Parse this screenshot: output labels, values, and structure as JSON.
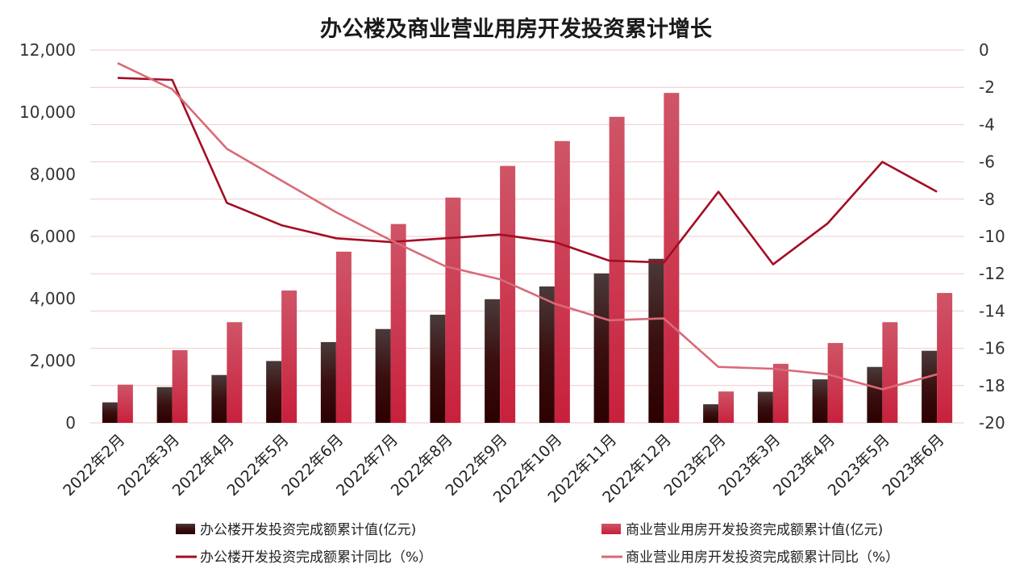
{
  "chart_data": {
    "type": "bar",
    "title": "办公楼及商业营业用房开发投资累计增长",
    "categories": [
      "2022年2月",
      "2022年3月",
      "2022年4月",
      "2022年5月",
      "2022年6月",
      "2022年7月",
      "2022年8月",
      "2022年9月",
      "2022年10月",
      "2022年11月",
      "2022年12月",
      "2023年2月",
      "2023年3月",
      "2023年4月",
      "2023年5月",
      "2023年6月"
    ],
    "ylim_left": [
      0,
      12000
    ],
    "yticks_left": [
      "0",
      "2,000",
      "4,000",
      "6,000",
      "8,000",
      "10,000",
      "12,000"
    ],
    "ylim_right": [
      -20,
      0
    ],
    "yticks_right": [
      "0",
      "-2",
      "-4",
      "-6",
      "-8",
      "-10",
      "-12",
      "-14",
      "-16",
      "-18",
      "-20"
    ],
    "grid": true,
    "legend_position": "bottom",
    "series": [
      {
        "name": "办公楼开发投资完成额累计值(亿元)",
        "type": "bar",
        "axis": "left",
        "color": "#3a0a0a",
        "values": [
          660,
          1150,
          1540,
          1990,
          2600,
          3020,
          3480,
          3980,
          4390,
          4810,
          5280,
          600,
          1000,
          1400,
          1800,
          2320
        ]
      },
      {
        "name": "商业营业用房开发投资完成额累计值(亿元)",
        "type": "bar",
        "axis": "left",
        "color": "#cc2e48",
        "values": [
          1230,
          2340,
          3240,
          4260,
          5510,
          6400,
          7250,
          8270,
          9070,
          9850,
          10620,
          1010,
          1900,
          2570,
          3240,
          4180
        ]
      },
      {
        "name": "办公楼开发投资完成额累计同比（%）",
        "type": "line",
        "axis": "right",
        "color": "#a30d25",
        "values": [
          -1.5,
          -1.6,
          -8.2,
          -9.4,
          -10.1,
          -10.3,
          -10.1,
          -9.9,
          -10.3,
          -11.3,
          -11.4,
          -7.6,
          -11.5,
          -9.3,
          -6.0,
          -7.6
        ]
      },
      {
        "name": "商业营业用房开发投资完成额累计同比（%）",
        "type": "line",
        "axis": "right",
        "color": "#d86a78",
        "values": [
          -0.7,
          -2.1,
          -5.3,
          -7.0,
          -8.7,
          -10.2,
          -11.6,
          -12.3,
          -13.6,
          -14.5,
          -14.4,
          -17.0,
          -17.1,
          -17.4,
          -18.2,
          -17.4
        ]
      }
    ]
  }
}
